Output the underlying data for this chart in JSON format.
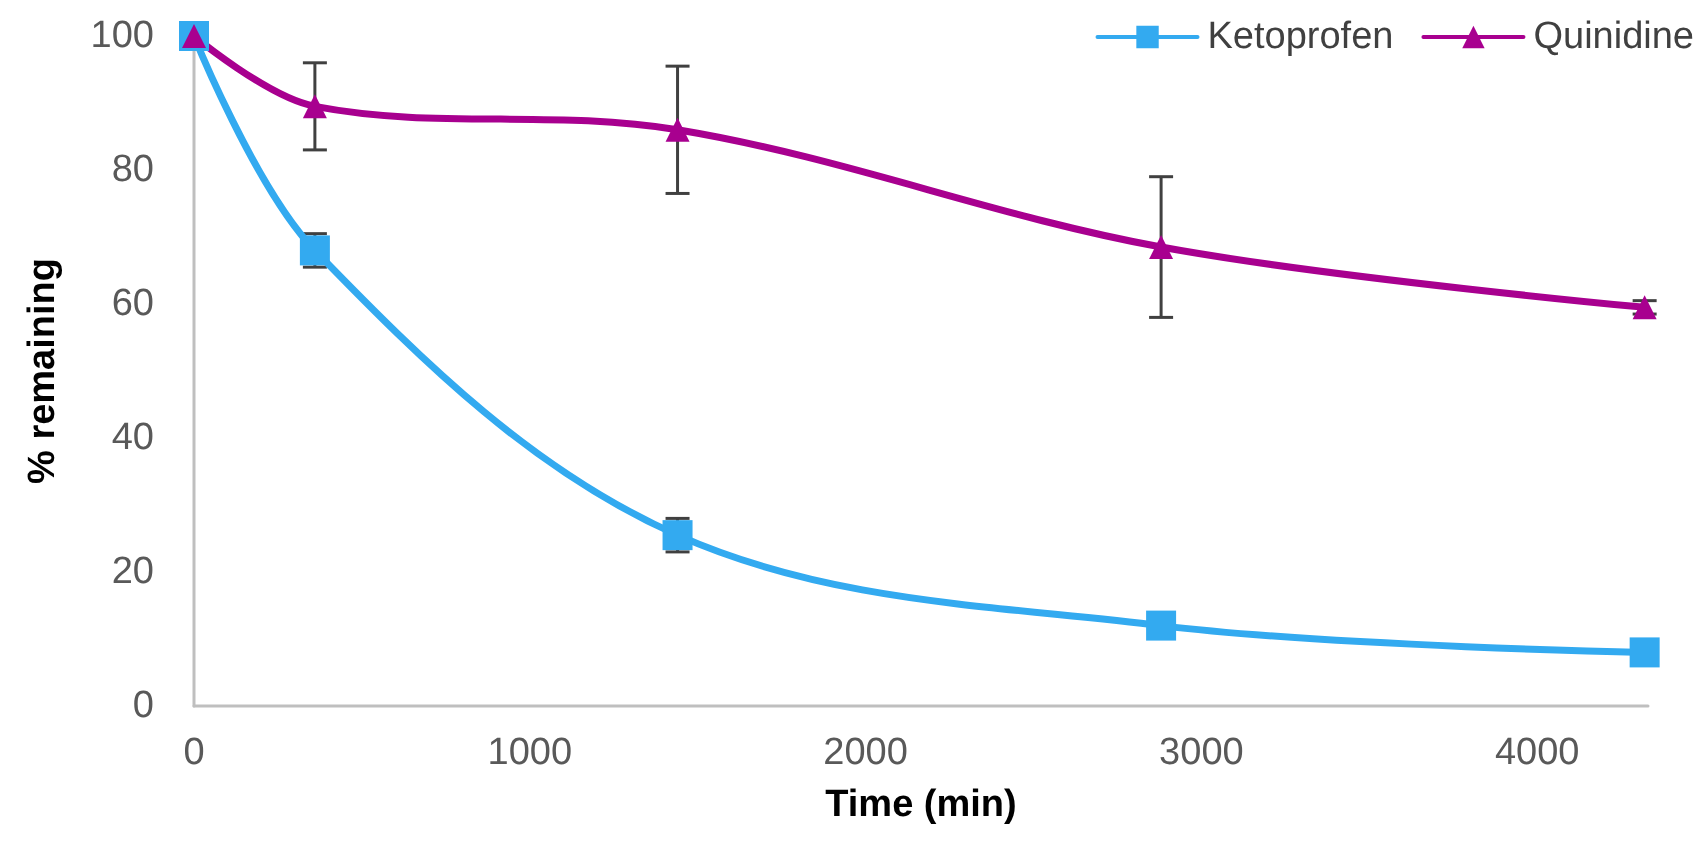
{
  "chart_data": {
    "type": "line",
    "xlabel": "Time (min)",
    "ylabel": "% remaining",
    "x": [
      0,
      360,
      1440,
      2880,
      4320
    ],
    "series": [
      {
        "name": "Ketoprofen",
        "color": "#33aaf0",
        "marker": "square",
        "values": [
          100,
          68,
          25.5,
          12,
          8
        ],
        "errors": [
          null,
          2.5,
          2.5,
          null,
          null
        ]
      },
      {
        "name": "Quinidine",
        "color": "#a8008f",
        "marker": "triangle",
        "values": [
          100,
          89.5,
          86,
          68.5,
          59.5
        ],
        "errors": [
          null,
          6.5,
          9.5,
          10.5,
          1
        ]
      }
    ],
    "xlim": [
      0,
      4330
    ],
    "xticks": [
      0,
      1000,
      2000,
      3000,
      4000
    ],
    "ylim": [
      0,
      100
    ],
    "yticks": [
      0,
      20,
      40,
      60,
      80,
      100
    ],
    "grid": false,
    "legend": "top right"
  }
}
